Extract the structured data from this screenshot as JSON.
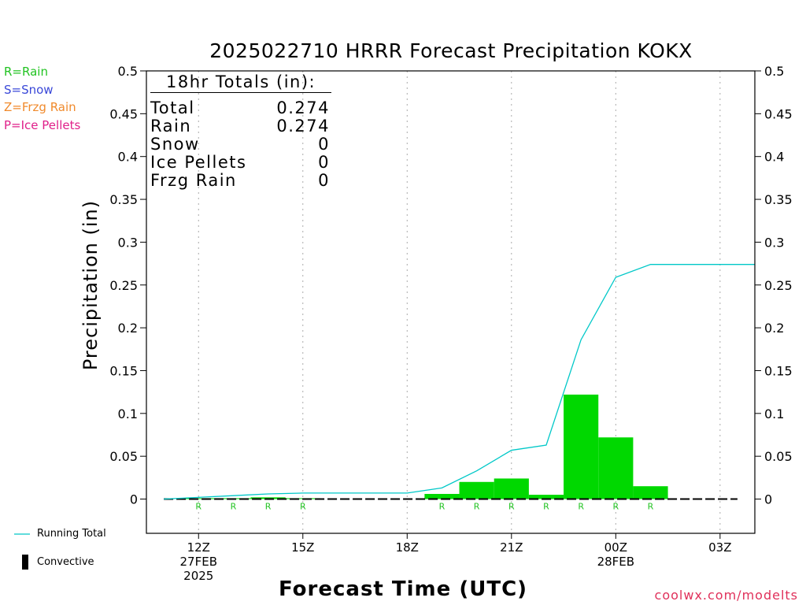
{
  "title": "2025022710 HRRR Forecast Precipitation KOKX",
  "legend": [
    {
      "label": "R=Rain",
      "color": "#22c322"
    },
    {
      "label": "S=Snow",
      "color": "#3a48d8"
    },
    {
      "label": "Z=Frzg Rain",
      "color": "#f08a2c"
    },
    {
      "label": "P=Ice Pellets",
      "color": "#e0208a"
    }
  ],
  "totals": {
    "header": "18hr Totals (in):",
    "rows": [
      {
        "label": "Total",
        "value": "0.274"
      },
      {
        "label": "Rain",
        "value": "0.274"
      },
      {
        "label": "Snow",
        "value": "0"
      },
      {
        "label": "Ice Pellets",
        "value": "0"
      },
      {
        "label": "Frzg Rain",
        "value": "0"
      }
    ]
  },
  "bottom_legend": {
    "running_total": "Running Total",
    "convective": "Convective"
  },
  "credit": "coolwx.com/modelts",
  "colors": {
    "bar": "#00d800",
    "line": "#00c8c8",
    "precip_letter": "#22c322"
  },
  "chart_data": {
    "type": "bar",
    "title": "2025022710 HRRR Forecast Precipitation KOKX",
    "xlabel": "Forecast Time (UTC)",
    "ylabel": "Precipitation (in)",
    "ylim": [
      -0.04,
      0.5
    ],
    "xlim": [
      10.5,
      28.0
    ],
    "yticks": [
      0,
      0.05,
      0.1,
      0.15,
      0.2,
      0.25,
      0.3,
      0.35,
      0.4,
      0.45,
      0.5
    ],
    "ytick_labels": [
      "0",
      "0.05",
      "0.1",
      "0.15",
      "0.2",
      "0.25",
      "0.3",
      "0.35",
      "0.4",
      "0.45",
      "0.5"
    ],
    "xticks": [
      {
        "hour": 12,
        "lines": [
          "12Z",
          "27FEB",
          "2025"
        ]
      },
      {
        "hour": 15,
        "lines": [
          "15Z"
        ]
      },
      {
        "hour": 18,
        "lines": [
          "18Z"
        ]
      },
      {
        "hour": 21,
        "lines": [
          "21Z"
        ]
      },
      {
        "hour": 24,
        "lines": [
          "00Z",
          "28FEB"
        ]
      },
      {
        "hour": 27,
        "lines": [
          "03Z"
        ]
      }
    ],
    "grid": "vertical dotted at x ticks",
    "series": [
      {
        "name": "Hourly precipitation",
        "kind": "bar",
        "hours": [
          12,
          13,
          14,
          15,
          16,
          17,
          18,
          19,
          20,
          21,
          22,
          23,
          24,
          25,
          26,
          27
        ],
        "values": [
          0.001,
          0.001,
          0.002,
          0.001,
          0,
          0,
          0,
          0.006,
          0.02,
          0.024,
          0.005,
          0.122,
          0.072,
          0.015,
          0,
          0
        ],
        "type_letters": [
          "R",
          "R",
          "R",
          "R",
          "",
          "",
          "",
          "R",
          "R",
          "R",
          "R",
          "R",
          "R",
          "R",
          "",
          ""
        ]
      },
      {
        "name": "Running Total",
        "kind": "line",
        "x": [
          11,
          12,
          13,
          14,
          15,
          16,
          17,
          18,
          19,
          20,
          21,
          22,
          23,
          24,
          25,
          26,
          27,
          28
        ],
        "y": [
          0,
          0.002,
          0.004,
          0.006,
          0.007,
          0.007,
          0.007,
          0.007,
          0.013,
          0.033,
          0.057,
          0.063,
          0.186,
          0.259,
          0.274,
          0.274,
          0.274,
          0.274
        ]
      }
    ]
  }
}
